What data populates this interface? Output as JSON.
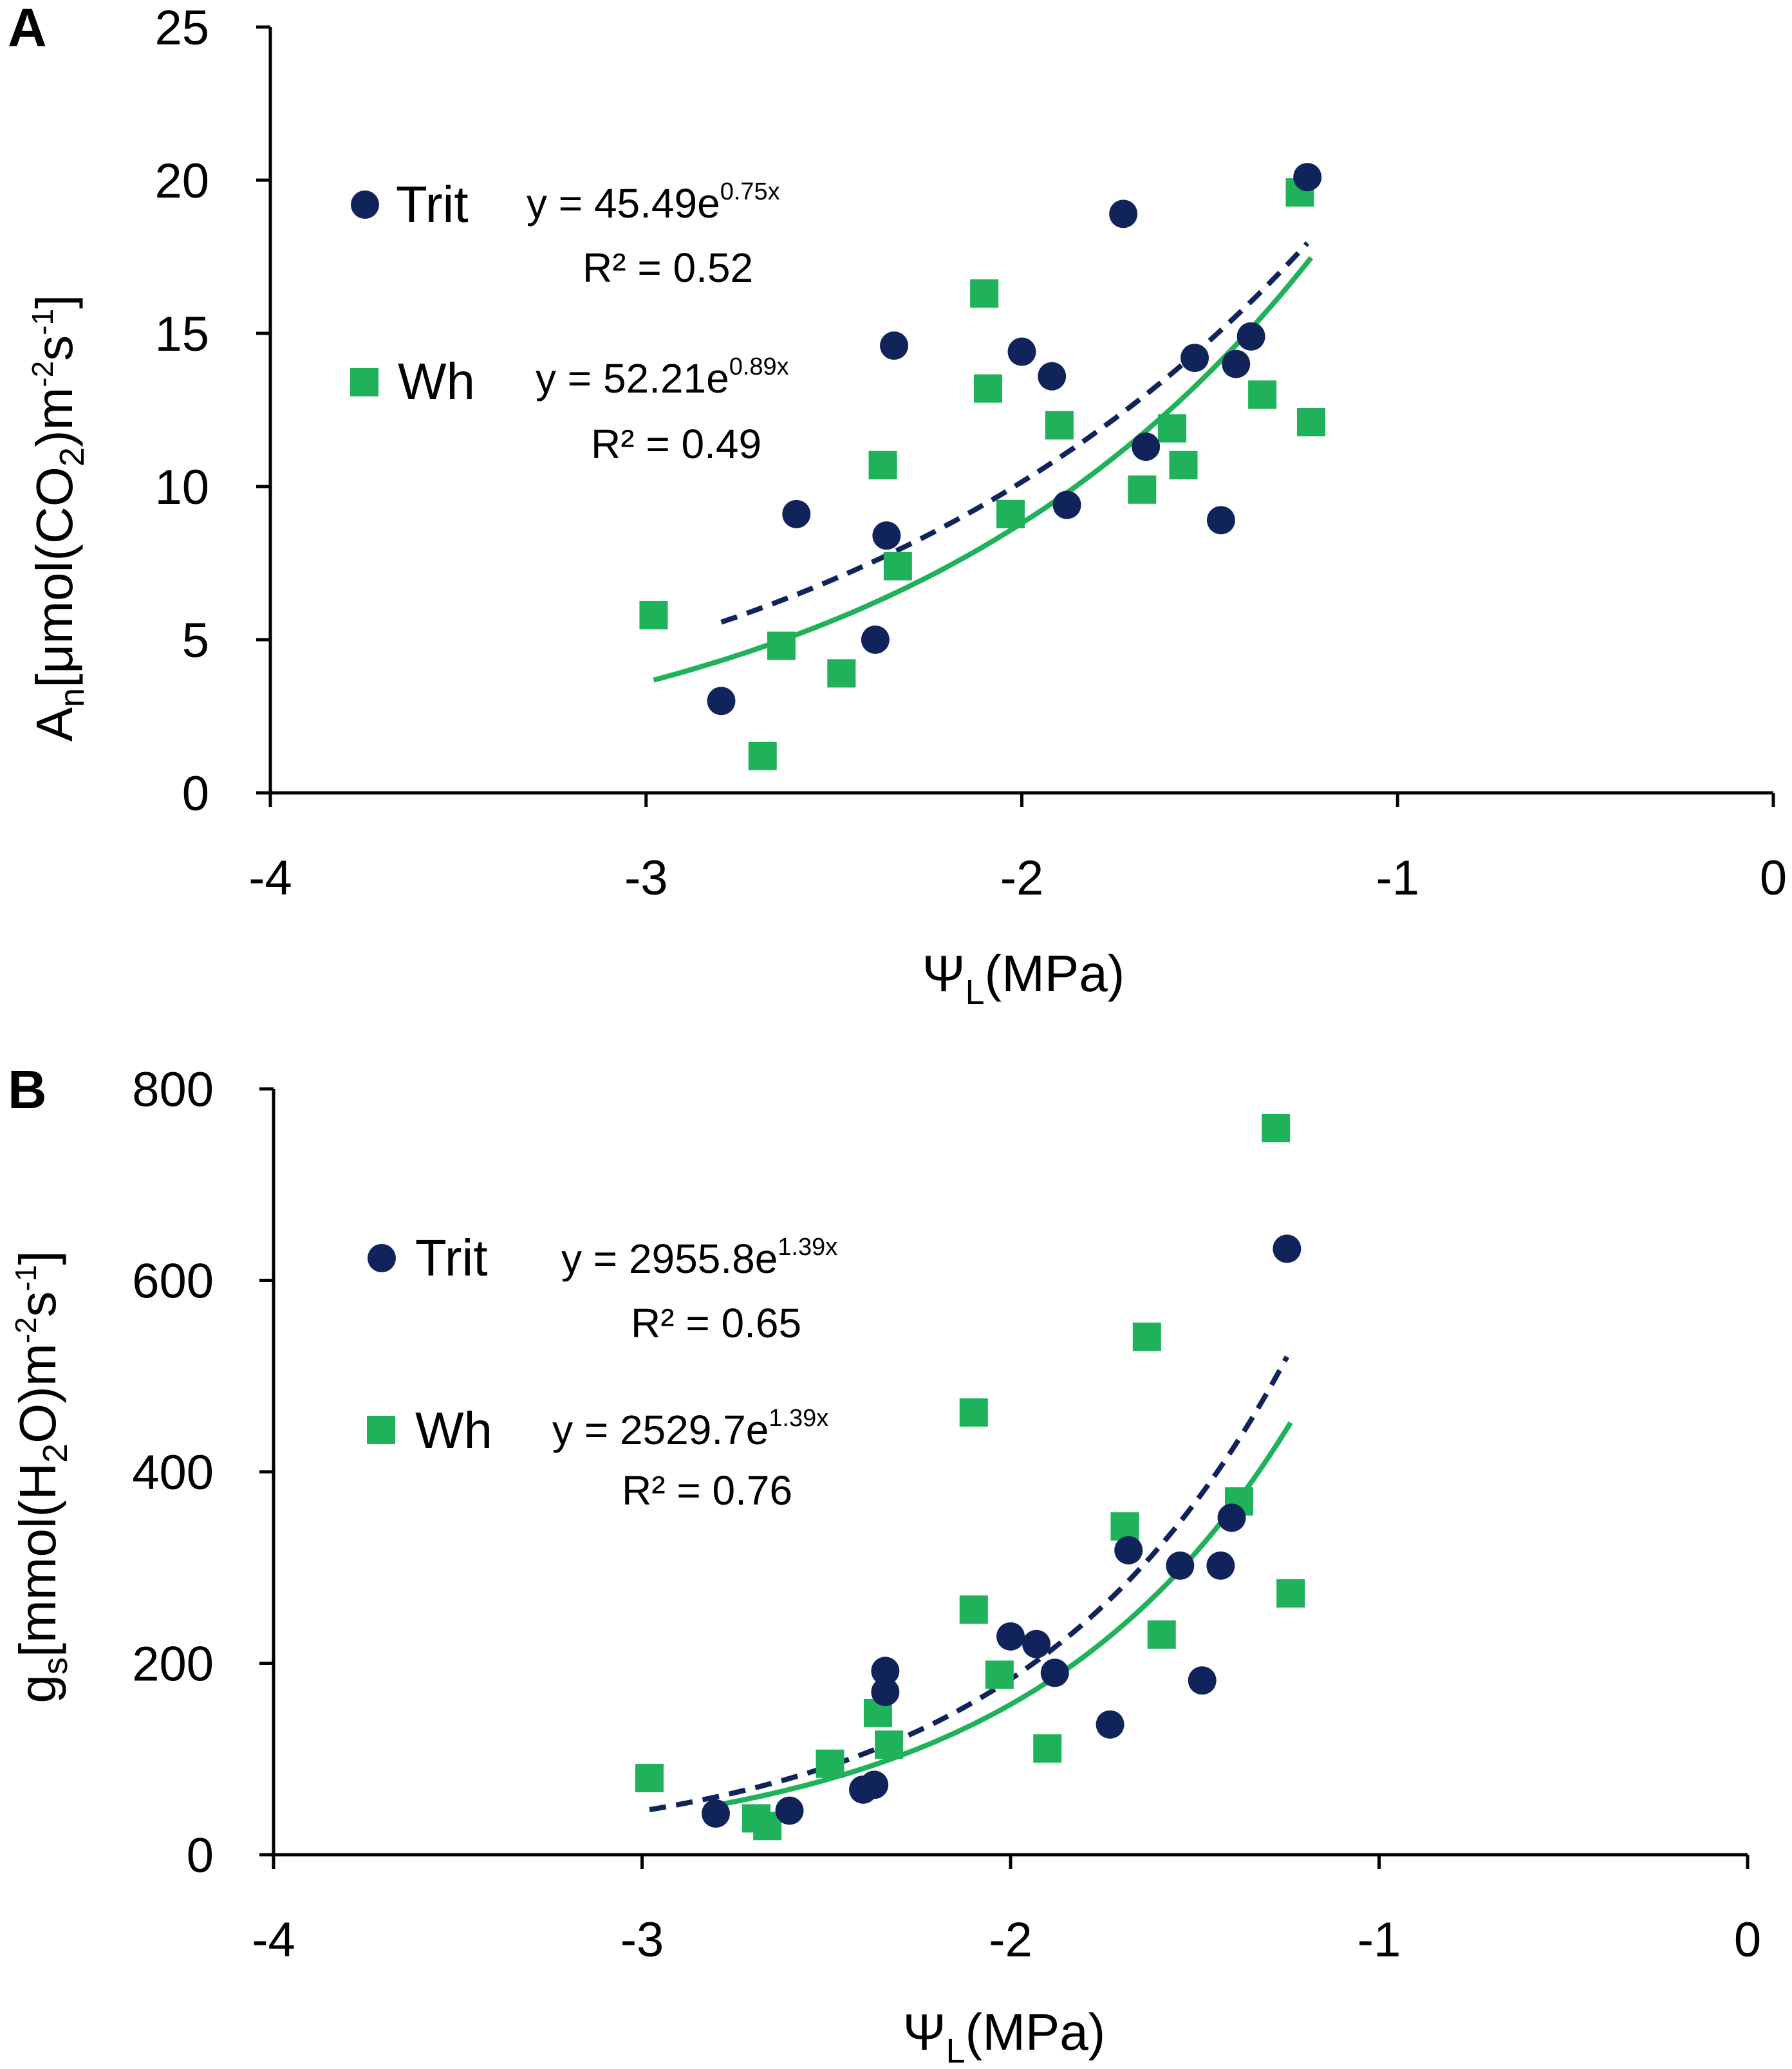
{
  "colors": {
    "trit": "#10235b",
    "wh": "#1fb25a",
    "axis": "#000000"
  },
  "chart_data": [
    {
      "type": "scatter",
      "panel_label": "A",
      "xlabel": {
        "symbol": "Ψ",
        "subscript": "L",
        "unit": "(MPa)"
      },
      "ylabel": {
        "symbol": "A",
        "subscript": "n",
        "pre": "[μmol(CO",
        "mid_sub": "2",
        "mid": ")m",
        "sup1": "-2",
        "s": "s",
        "sup2": "-1",
        "post": "]"
      },
      "xlim": [
        -4,
        0
      ],
      "ylim": [
        0,
        25
      ],
      "xticks": [
        -4,
        -3,
        -2,
        -1,
        0
      ],
      "xtick_labels": [
        "-4",
        "-3",
        "-2",
        "-1",
        "0"
      ],
      "yticks": [
        0,
        5,
        10,
        15,
        20,
        25
      ],
      "ytick_labels": [
        "0",
        "5",
        "10",
        "15",
        "20",
        "25"
      ],
      "series": [
        {
          "name": "Trit",
          "marker": "circle",
          "color_key": "trit",
          "points": [
            [
              -2.8,
              3.0
            ],
            [
              -2.6,
              9.1
            ],
            [
              -2.36,
              8.4
            ],
            [
              -2.39,
              5.0
            ],
            [
              -2.34,
              14.6
            ],
            [
              -2.0,
              14.4
            ],
            [
              -1.92,
              13.6
            ],
            [
              -1.88,
              9.4
            ],
            [
              -1.73,
              18.9
            ],
            [
              -1.67,
              11.3
            ],
            [
              -1.54,
              14.2
            ],
            [
              -1.47,
              8.9
            ],
            [
              -1.43,
              14.0
            ],
            [
              -1.39,
              14.9
            ],
            [
              -1.24,
              20.1
            ]
          ],
          "fit": {
            "a": 45.49,
            "b": 0.75,
            "x_range": [
              -2.8,
              -1.24
            ],
            "style": "dashed"
          },
          "equation": {
            "prefix": "y = 45.49e",
            "exponent": "0.75x"
          },
          "r2": "R² = 0.52"
        },
        {
          "name": "Wh",
          "marker": "square",
          "color_key": "wh",
          "points": [
            [
              -2.98,
              5.8
            ],
            [
              -2.69,
              1.2
            ],
            [
              -2.64,
              4.8
            ],
            [
              -2.48,
              3.9
            ],
            [
              -2.37,
              10.7
            ],
            [
              -2.33,
              7.4
            ],
            [
              -2.1,
              16.3
            ],
            [
              -2.09,
              13.2
            ],
            [
              -2.03,
              9.1
            ],
            [
              -1.9,
              12.0
            ],
            [
              -1.68,
              9.9
            ],
            [
              -1.6,
              11.9
            ],
            [
              -1.57,
              10.7
            ],
            [
              -1.36,
              13.0
            ],
            [
              -1.26,
              19.6
            ],
            [
              -1.23,
              12.1
            ]
          ],
          "fit": {
            "a": 52.21,
            "b": 0.89,
            "x_range": [
              -2.98,
              -1.23
            ],
            "style": "solid"
          },
          "equation": {
            "prefix": "y = 52.21e",
            "exponent": "0.89x"
          },
          "r2": "R² = 0.49"
        }
      ]
    },
    {
      "type": "scatter",
      "panel_label": "B",
      "xlabel": {
        "symbol": "Ψ",
        "subscript": "L",
        "unit": "(MPa)"
      },
      "ylabel": {
        "symbol": "g",
        "subscript": "s",
        "pre": "[mmol(H",
        "mid_sub": "2",
        "mid": "O)m",
        "sup1": "-2",
        "s": "s",
        "sup2": "-1",
        "post": "]"
      },
      "xlim": [
        -4,
        0
      ],
      "ylim": [
        0,
        800
      ],
      "xticks": [
        -4,
        -3,
        -2,
        -1,
        0
      ],
      "xtick_labels": [
        "-4",
        "-3",
        "-2",
        "-1",
        "0"
      ],
      "yticks": [
        0,
        200,
        400,
        600,
        800
      ],
      "ytick_labels": [
        "0",
        "200",
        "400",
        "600",
        "800"
      ],
      "series": [
        {
          "name": "Trit",
          "marker": "circle",
          "color_key": "trit",
          "points": [
            [
              -2.8,
              43
            ],
            [
              -2.6,
              46
            ],
            [
              -2.4,
              68
            ],
            [
              -2.37,
              73
            ],
            [
              -2.34,
              170
            ],
            [
              -2.34,
              192
            ],
            [
              -2.0,
              228
            ],
            [
              -1.93,
              220
            ],
            [
              -1.88,
              190
            ],
            [
              -1.73,
              136
            ],
            [
              -1.68,
              318
            ],
            [
              -1.54,
              302
            ],
            [
              -1.48,
              182
            ],
            [
              -1.43,
              302
            ],
            [
              -1.4,
              352
            ],
            [
              -1.25,
              633
            ]
          ],
          "fit": {
            "a": 2955.8,
            "b": 1.39,
            "x_range": [
              -2.98,
              -1.25
            ],
            "style": "dashed"
          },
          "equation": {
            "prefix": "y = 2955.8e",
            "exponent": "1.39x"
          },
          "r2": "R² = 0.65"
        },
        {
          "name": "Wh",
          "marker": "square",
          "color_key": "wh",
          "points": [
            [
              -2.98,
              80
            ],
            [
              -2.69,
              38
            ],
            [
              -2.66,
              30
            ],
            [
              -2.49,
              95
            ],
            [
              -2.36,
              148
            ],
            [
              -2.33,
              115
            ],
            [
              -2.1,
              462
            ],
            [
              -2.1,
              256
            ],
            [
              -2.03,
              188
            ],
            [
              -1.9,
              111
            ],
            [
              -1.69,
              343
            ],
            [
              -1.63,
              541
            ],
            [
              -1.59,
              230
            ],
            [
              -1.38,
              369
            ],
            [
              -1.28,
              759
            ],
            [
              -1.24,
              273
            ]
          ],
          "fit": {
            "a": 2529.7,
            "b": 1.39,
            "x_range": [
              -2.8,
              -1.24
            ],
            "style": "solid"
          },
          "equation": {
            "prefix": "y = 2529.7e",
            "exponent": "1.39x"
          },
          "r2": "R² = 0.76"
        }
      ]
    }
  ]
}
